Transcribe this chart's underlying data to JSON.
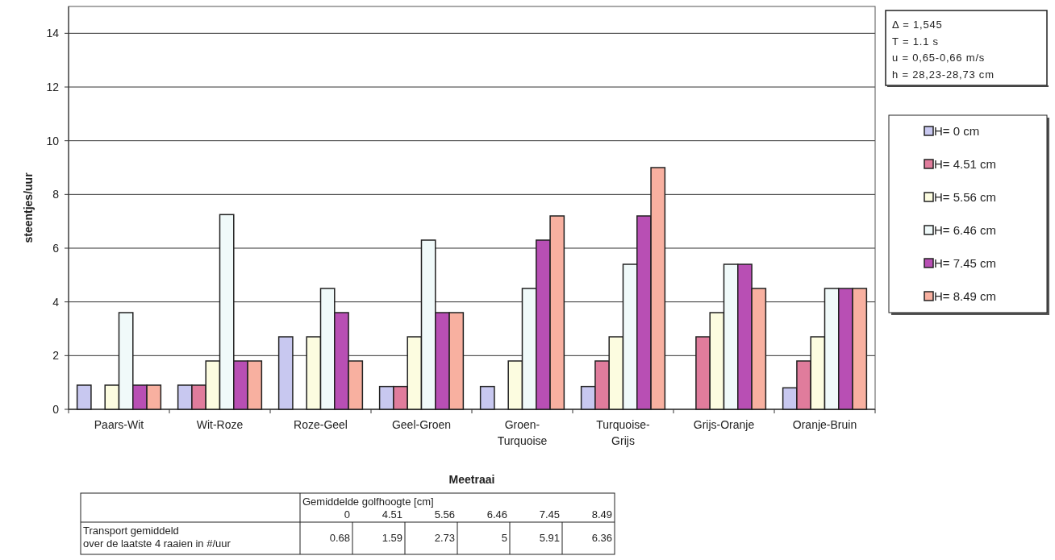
{
  "chart_data": {
    "type": "bar",
    "xlabel": "Meetraai",
    "ylabel": "steentjes/uur",
    "categories": [
      "Paars-Wit",
      "Wit-Roze",
      "Roze-Geel",
      "Geel-Groen",
      "Groen-Turquoise",
      "Turquoise-Grijs",
      "Grijs-Oranje",
      "Oranje-Bruin"
    ],
    "series": [
      {
        "name": "H= 0 cm",
        "color": "#c8c8f0",
        "values": [
          0.9,
          0.9,
          2.7,
          0.85,
          0.85,
          0.85,
          0,
          0.8
        ]
      },
      {
        "name": "H= 4.51 cm",
        "color": "#e07c9c",
        "values": [
          0,
          0.9,
          0,
          0.85,
          0,
          1.8,
          2.7,
          1.8
        ]
      },
      {
        "name": "H= 5.56 cm",
        "color": "#fcfce0",
        "values": [
          0.9,
          1.8,
          2.7,
          2.7,
          1.8,
          2.7,
          3.6,
          2.7
        ]
      },
      {
        "name": "H= 6.46 cm",
        "color": "#f0fafa",
        "values": [
          3.6,
          7.25,
          4.5,
          6.3,
          4.5,
          5.4,
          5.4,
          4.5
        ]
      },
      {
        "name": "H= 7.45 cm",
        "color": "#b84fb4",
        "values": [
          0.9,
          1.8,
          3.6,
          3.6,
          6.3,
          7.2,
          5.4,
          4.5
        ]
      },
      {
        "name": "H= 8.49 cm",
        "color": "#f8b0a0",
        "values": [
          0.9,
          1.8,
          1.8,
          3.6,
          7.2,
          9.0,
          4.5,
          4.5
        ]
      }
    ],
    "ylim": [
      0,
      15
    ],
    "yticks": [
      0,
      2,
      4,
      6,
      8,
      10,
      12,
      14
    ],
    "grid": "y",
    "legend": "right",
    "annotations": [
      "Δ = 1,545",
      "T = 1.1 s",
      "u = 0,65-0,66 m/s",
      "h = 28,23-28,73 cm",
      "Gemiddelde golfhoogte  [cm]",
      "0",
      "4.51",
      "5.56",
      "6.46",
      "7.45",
      "8.49",
      "Transport gemiddeld over de laatste 4 raaien in #/uur",
      "0.68",
      "1.59",
      "2.73",
      "5",
      "5.91",
      "6.36"
    ]
  }
}
